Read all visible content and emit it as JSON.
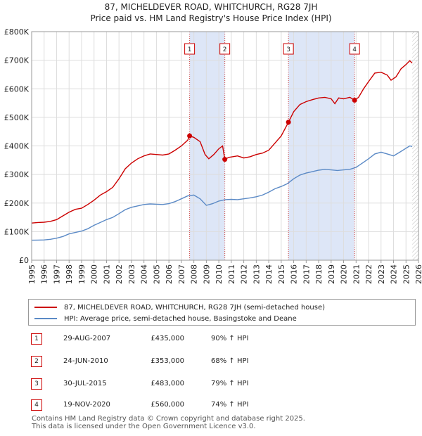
{
  "chart_data": {
    "type": "line",
    "title": "87, MICHELDEVER ROAD, WHITCHURCH, RG28 7JH",
    "subtitle": "Price paid vs. HM Land Registry's House Price Index (HPI)",
    "xlabel": "",
    "ylabel": "",
    "xlim": [
      1995,
      2026
    ],
    "ylim": [
      0,
      800000
    ],
    "x_ticks": [
      "1995",
      "1996",
      "1997",
      "1998",
      "1999",
      "2000",
      "2001",
      "2002",
      "2003",
      "2004",
      "2005",
      "2006",
      "2007",
      "2008",
      "2009",
      "2010",
      "2011",
      "2012",
      "2013",
      "2014",
      "2015",
      "2016",
      "2017",
      "2018",
      "2019",
      "2020",
      "2021",
      "2022",
      "2023",
      "2024",
      "2025",
      "2026"
    ],
    "y_ticks": [
      {
        "value": 0,
        "label": "£0"
      },
      {
        "value": 100000,
        "label": "£100K"
      },
      {
        "value": 200000,
        "label": "£200K"
      },
      {
        "value": 300000,
        "label": "£300K"
      },
      {
        "value": 400000,
        "label": "£400K"
      },
      {
        "value": 500000,
        "label": "£500K"
      },
      {
        "value": 600000,
        "label": "£600K"
      },
      {
        "value": 700000,
        "label": "£700K"
      },
      {
        "value": 800000,
        "label": "£800K"
      }
    ],
    "series": [
      {
        "name": "87, MICHELDEVER ROAD, WHITCHURCH, RG28 7JH (semi-detached house)",
        "color": "#cc0000",
        "points": [
          [
            1995.0,
            130000
          ],
          [
            1995.5,
            132000
          ],
          [
            1996.0,
            133000
          ],
          [
            1996.5,
            136000
          ],
          [
            1997.0,
            142000
          ],
          [
            1997.5,
            155000
          ],
          [
            1998.0,
            168000
          ],
          [
            1998.5,
            178000
          ],
          [
            1999.0,
            182000
          ],
          [
            1999.5,
            195000
          ],
          [
            2000.0,
            210000
          ],
          [
            2000.5,
            228000
          ],
          [
            2001.0,
            240000
          ],
          [
            2001.5,
            255000
          ],
          [
            2002.0,
            285000
          ],
          [
            2002.5,
            320000
          ],
          [
            2003.0,
            340000
          ],
          [
            2003.5,
            355000
          ],
          [
            2004.0,
            365000
          ],
          [
            2004.5,
            372000
          ],
          [
            2005.0,
            370000
          ],
          [
            2005.5,
            368000
          ],
          [
            2006.0,
            372000
          ],
          [
            2006.5,
            385000
          ],
          [
            2007.0,
            400000
          ],
          [
            2007.5,
            420000
          ],
          [
            2007.66,
            435000
          ],
          [
            2008.0,
            430000
          ],
          [
            2008.5,
            415000
          ],
          [
            2008.9,
            370000
          ],
          [
            2009.2,
            355000
          ],
          [
            2009.6,
            370000
          ],
          [
            2010.0,
            390000
          ],
          [
            2010.3,
            400000
          ],
          [
            2010.48,
            353000
          ],
          [
            2010.8,
            360000
          ],
          [
            2011.5,
            365000
          ],
          [
            2012.0,
            358000
          ],
          [
            2012.5,
            362000
          ],
          [
            2013.0,
            370000
          ],
          [
            2013.5,
            375000
          ],
          [
            2014.0,
            385000
          ],
          [
            2014.5,
            410000
          ],
          [
            2015.0,
            435000
          ],
          [
            2015.58,
            483000
          ],
          [
            2016.0,
            520000
          ],
          [
            2016.5,
            545000
          ],
          [
            2017.0,
            555000
          ],
          [
            2017.5,
            562000
          ],
          [
            2018.0,
            568000
          ],
          [
            2018.5,
            570000
          ],
          [
            2019.0,
            565000
          ],
          [
            2019.3,
            548000
          ],
          [
            2019.6,
            568000
          ],
          [
            2020.0,
            565000
          ],
          [
            2020.5,
            570000
          ],
          [
            2020.88,
            560000
          ],
          [
            2021.2,
            570000
          ],
          [
            2021.6,
            600000
          ],
          [
            2022.0,
            625000
          ],
          [
            2022.5,
            655000
          ],
          [
            2023.0,
            658000
          ],
          [
            2023.5,
            648000
          ],
          [
            2023.8,
            630000
          ],
          [
            2024.2,
            642000
          ],
          [
            2024.6,
            670000
          ],
          [
            2025.0,
            685000
          ],
          [
            2025.3,
            698000
          ],
          [
            2025.5,
            690000
          ]
        ]
      },
      {
        "name": "HPI: Average price, semi-detached house, Basingstoke and Deane",
        "color": "#5b8ac6",
        "points": [
          [
            1995.0,
            70000
          ],
          [
            1995.5,
            70500
          ],
          [
            1996.0,
            71000
          ],
          [
            1996.5,
            73000
          ],
          [
            1997.0,
            77000
          ],
          [
            1997.5,
            83000
          ],
          [
            1998.0,
            92000
          ],
          [
            1998.5,
            97000
          ],
          [
            1999.0,
            102000
          ],
          [
            1999.5,
            110000
          ],
          [
            2000.0,
            122000
          ],
          [
            2000.5,
            132000
          ],
          [
            2001.0,
            142000
          ],
          [
            2001.5,
            150000
          ],
          [
            2002.0,
            163000
          ],
          [
            2002.5,
            177000
          ],
          [
            2003.0,
            185000
          ],
          [
            2003.5,
            190000
          ],
          [
            2004.0,
            195000
          ],
          [
            2004.5,
            197000
          ],
          [
            2005.0,
            196000
          ],
          [
            2005.5,
            195000
          ],
          [
            2006.0,
            198000
          ],
          [
            2006.5,
            205000
          ],
          [
            2007.0,
            215000
          ],
          [
            2007.5,
            225000
          ],
          [
            2008.0,
            228000
          ],
          [
            2008.5,
            215000
          ],
          [
            2009.0,
            192000
          ],
          [
            2009.5,
            198000
          ],
          [
            2010.0,
            207000
          ],
          [
            2010.5,
            212000
          ],
          [
            2011.0,
            213000
          ],
          [
            2011.5,
            212000
          ],
          [
            2012.0,
            215000
          ],
          [
            2012.5,
            218000
          ],
          [
            2013.0,
            222000
          ],
          [
            2013.5,
            228000
          ],
          [
            2014.0,
            238000
          ],
          [
            2014.5,
            250000
          ],
          [
            2015.0,
            258000
          ],
          [
            2015.5,
            268000
          ],
          [
            2016.0,
            285000
          ],
          [
            2016.5,
            298000
          ],
          [
            2017.0,
            305000
          ],
          [
            2017.5,
            310000
          ],
          [
            2018.0,
            315000
          ],
          [
            2018.5,
            318000
          ],
          [
            2019.0,
            316000
          ],
          [
            2019.5,
            314000
          ],
          [
            2020.0,
            316000
          ],
          [
            2020.5,
            318000
          ],
          [
            2021.0,
            325000
          ],
          [
            2021.5,
            340000
          ],
          [
            2022.0,
            355000
          ],
          [
            2022.5,
            372000
          ],
          [
            2023.0,
            378000
          ],
          [
            2023.5,
            372000
          ],
          [
            2024.0,
            365000
          ],
          [
            2024.5,
            378000
          ],
          [
            2025.0,
            392000
          ],
          [
            2025.3,
            400000
          ],
          [
            2025.5,
            398000
          ]
        ]
      }
    ],
    "sales": [
      {
        "num": "1",
        "x": 2007.66,
        "value": 435000
      },
      {
        "num": "2",
        "x": 2010.48,
        "value": 353000
      },
      {
        "num": "3",
        "x": 2015.58,
        "value": 483000
      },
      {
        "num": "4",
        "x": 2020.88,
        "value": 560000
      }
    ],
    "shaded_ranges": [
      [
        2007.66,
        2010.48
      ],
      [
        2015.58,
        2020.88
      ]
    ],
    "future_hatch_from": 2025.5,
    "colors": {
      "shade": "#dde6f7",
      "grid": "#dddddd",
      "axis": "#999999"
    }
  },
  "legend": {
    "items": [
      {
        "label": "87, MICHELDEVER ROAD, WHITCHURCH, RG28 7JH (semi-detached house)",
        "color": "#cc0000"
      },
      {
        "label": "HPI: Average price, semi-detached house, Basingstoke and Deane",
        "color": "#5b8ac6"
      }
    ]
  },
  "table": {
    "rows": [
      {
        "num": "1",
        "date": "29-AUG-2007",
        "price": "£435,000",
        "hpi": "90% ↑ HPI"
      },
      {
        "num": "2",
        "date": "24-JUN-2010",
        "price": "£353,000",
        "hpi": "68% ↑ HPI"
      },
      {
        "num": "3",
        "date": "30-JUL-2015",
        "price": "£483,000",
        "hpi": "79% ↑ HPI"
      },
      {
        "num": "4",
        "date": "19-NOV-2020",
        "price": "£560,000",
        "hpi": "74% ↑ HPI"
      }
    ]
  },
  "footer": {
    "line1": "Contains HM Land Registry data © Crown copyright and database right 2025.",
    "line2": "This data is licensed under the Open Government Licence v3.0."
  }
}
